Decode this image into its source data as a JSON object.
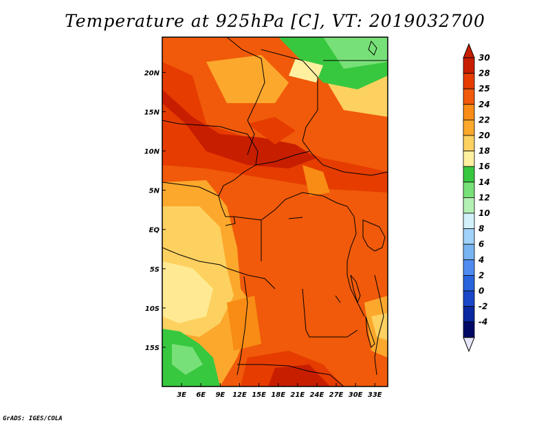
{
  "title": "Temperature at 925hPa [C], VT: 2019032700",
  "credit": "GrADS: IGES/COLA",
  "map": {
    "lat_labels": [
      "20N",
      "15N",
      "10N",
      "5N",
      "EQ",
      "5S",
      "10S",
      "15S"
    ],
    "lat_values": [
      20,
      15,
      10,
      5,
      0,
      -5,
      -10,
      -15
    ],
    "lon_labels": [
      "3E",
      "6E",
      "9E",
      "12E",
      "15E",
      "18E",
      "21E",
      "24E",
      "27E",
      "30E",
      "33E"
    ],
    "lon_values": [
      3,
      6,
      9,
      12,
      15,
      18,
      21,
      24,
      27,
      30,
      33
    ],
    "lon_range": [
      0,
      35
    ],
    "lat_range": [
      -20,
      24.5
    ]
  },
  "colorbar": {
    "labels": [
      "30",
      "28",
      "25",
      "24",
      "22",
      "20",
      "18",
      "16",
      "14",
      "12",
      "10",
      "8",
      "6",
      "4",
      "2",
      "0",
      "-2",
      "-4"
    ],
    "colors": [
      "#c81e00",
      "#e63c00",
      "#f05a0a",
      "#f88c14",
      "#fca82c",
      "#fdd160",
      "#fff0a0",
      "#38c840",
      "#78e078",
      "#b4f0b4",
      "#d2f0fa",
      "#a0d2fa",
      "#78b4f0",
      "#508cf0",
      "#2864dc",
      "#1a46c8",
      "#0a28a0",
      "#000a64"
    ],
    "top_arrow_color": "#c81e00",
    "bottom_arrow_color": "#e6e6fa"
  }
}
